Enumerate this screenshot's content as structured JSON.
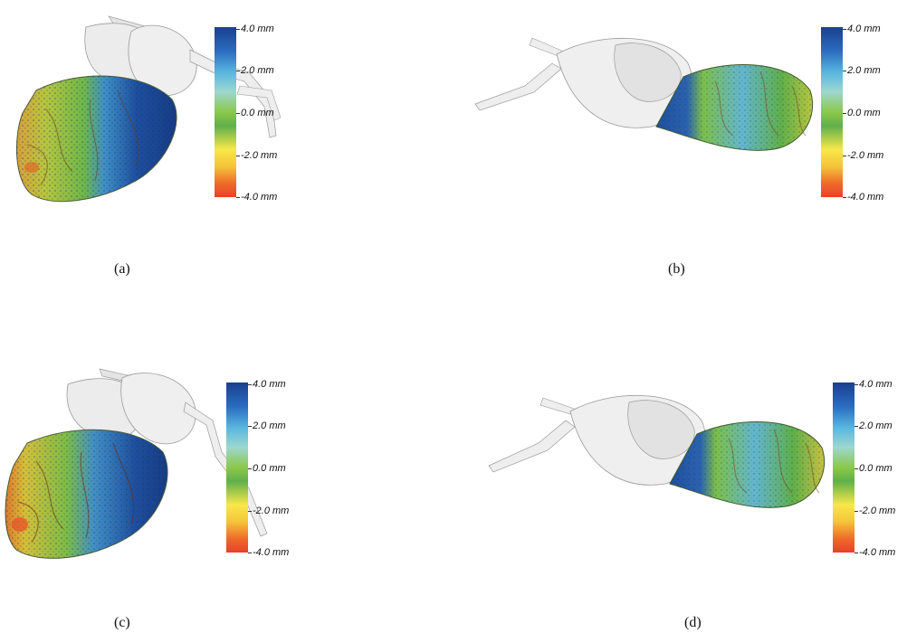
{
  "panels": [
    {
      "caption": "(a)",
      "colorbar": {
        "ticks": [
          "4.0 mm",
          "2.0 mm",
          "0.0 mm",
          "-2.0 mm",
          "-4.0 mm"
        ]
      }
    },
    {
      "caption": "(b)",
      "colorbar": {
        "ticks": [
          "4.0 mm",
          "2.0 mm",
          "0.0 mm",
          "-2.0 mm",
          "-4.0 mm"
        ]
      }
    },
    {
      "caption": "(c)",
      "colorbar": {
        "ticks": [
          "4.0 mm",
          "2.0 mm",
          "0.0 mm",
          "-2.0 mm",
          "-4.0 mm"
        ]
      }
    },
    {
      "caption": "(d)",
      "colorbar": {
        "ticks": [
          "4.0 mm",
          "2.0 mm",
          "0.0 mm",
          "-2.0 mm",
          "-4.0 mm"
        ]
      }
    }
  ],
  "colormap": [
    "#1a3f8f",
    "#5ab8e0",
    "#8cc84a",
    "#f7e84a",
    "#e8412a"
  ]
}
